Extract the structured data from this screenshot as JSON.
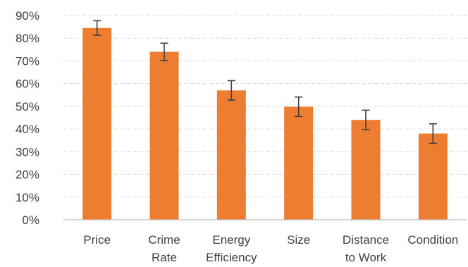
{
  "chart_data": {
    "type": "bar",
    "categories": [
      [
        "Price"
      ],
      [
        "Crime",
        "Rate"
      ],
      [
        "Energy",
        "Efficiency"
      ],
      [
        "Size"
      ],
      [
        "Distance",
        "to Work"
      ],
      [
        "Condition"
      ]
    ],
    "values": [
      84.5,
      74,
      57,
      49.8,
      44,
      38
    ],
    "error": [
      3.2,
      3.8,
      4.3,
      4.3,
      4.3,
      4.3
    ],
    "ylim": [
      0,
      90
    ],
    "yticks": [
      0,
      10,
      20,
      30,
      40,
      50,
      60,
      70,
      80,
      90
    ],
    "ytick_labels": [
      "0%",
      "10%",
      "20%",
      "30%",
      "40%",
      "50%",
      "60%",
      "70%",
      "80%",
      "90%"
    ],
    "title": "",
    "xlabel": "",
    "ylabel": "",
    "grid": true,
    "legend": "none",
    "bar_color": "#ED7D31"
  }
}
